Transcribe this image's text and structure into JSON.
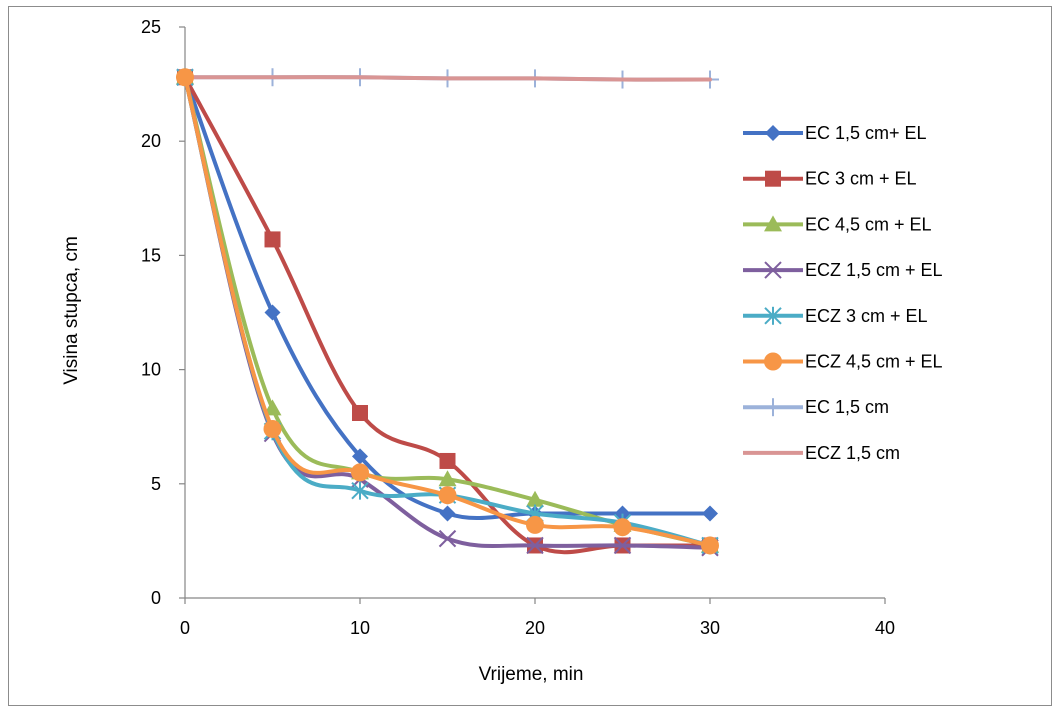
{
  "chart_data": {
    "type": "line",
    "title": "",
    "xlabel": "Vrijeme, min",
    "ylabel": "Visina stupca, cm",
    "xlim": [
      0,
      40
    ],
    "ylim": [
      0,
      25
    ],
    "xticks": [
      0,
      10,
      20,
      30,
      40
    ],
    "yticks": [
      0,
      5,
      10,
      15,
      20,
      25
    ],
    "grid": false,
    "legend_position": "right",
    "smooth": true,
    "series": [
      {
        "name": "EC 1,5 cm+ EL",
        "color": "#4472C4",
        "marker": "diamond",
        "x": [
          0,
          5,
          10,
          15,
          20,
          25,
          30
        ],
        "y": [
          22.8,
          12.5,
          6.2,
          3.7,
          3.7,
          3.7,
          3.7
        ]
      },
      {
        "name": "EC 3 cm + EL",
        "color": "#BE4B48",
        "marker": "square",
        "x": [
          0,
          5,
          10,
          15,
          20,
          25,
          30
        ],
        "y": [
          22.8,
          15.7,
          8.1,
          6.0,
          2.3,
          2.3,
          2.3
        ]
      },
      {
        "name": "EC 4,5 cm + EL",
        "color": "#9BBB59",
        "marker": "triangle",
        "x": [
          0,
          5,
          10,
          15,
          20,
          25,
          30
        ],
        "y": [
          22.8,
          8.3,
          5.5,
          5.2,
          4.3,
          3.2,
          2.3
        ]
      },
      {
        "name": "ECZ 1,5 cm + EL",
        "color": "#7E5F9E",
        "marker": "x",
        "x": [
          0,
          5,
          10,
          15,
          20,
          25,
          30
        ],
        "y": [
          22.8,
          7.2,
          5.2,
          2.6,
          2.3,
          2.3,
          2.2
        ]
      },
      {
        "name": "ECZ 3 cm + EL",
        "color": "#4BACC6",
        "marker": "star",
        "x": [
          0,
          5,
          10,
          15,
          20,
          25,
          30
        ],
        "y": [
          22.8,
          7.3,
          4.7,
          4.5,
          3.7,
          3.3,
          2.3
        ]
      },
      {
        "name": "ECZ 4,5 cm + EL",
        "color": "#F79646",
        "marker": "circle",
        "x": [
          0,
          5,
          10,
          15,
          20,
          25,
          30
        ],
        "y": [
          22.8,
          7.4,
          5.5,
          4.5,
          3.2,
          3.1,
          2.3
        ]
      },
      {
        "name": "EC 1,5 cm",
        "color": "#9CB2DA",
        "marker": "plus",
        "x": [
          0,
          5,
          10,
          15,
          20,
          25,
          30
        ],
        "y": [
          22.8,
          22.8,
          22.8,
          22.75,
          22.75,
          22.7,
          22.7
        ]
      },
      {
        "name": "ECZ 1,5 cm",
        "color": "#D99594",
        "marker": "none",
        "x": [
          0,
          5,
          10,
          15,
          20,
          25,
          30
        ],
        "y": [
          22.8,
          22.8,
          22.8,
          22.75,
          22.75,
          22.7,
          22.7
        ]
      }
    ]
  }
}
